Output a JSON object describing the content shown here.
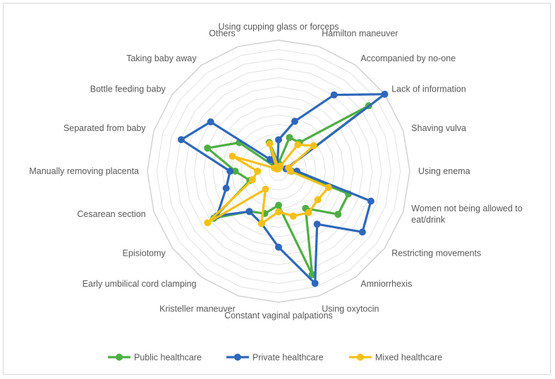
{
  "chart_data": {
    "type": "radar",
    "categories": [
      "Using cupping glass or forceps",
      "Hamilton maneuver",
      "Accompanied by no-one",
      "Lack of information",
      "Shaving vulva",
      "Using enema",
      "Women not being allowed to eat/drink",
      "Restricting movements",
      "Amniorrhexis",
      "Using oxytocin",
      "Constant vaginal palpations",
      "Kristeller maneuver",
      "Early umbilical cord clamping",
      "Episiotomy",
      "Cesarean section",
      "Manually removing placenta",
      "Separated from baby",
      "Bottle feeding baby",
      "Taking baby away",
      "Others"
    ],
    "display_labels": [
      [
        "Using cupping glass or forceps"
      ],
      [
        "Hamilton maneuver"
      ],
      [
        "Accompanied by no-one"
      ],
      [
        "Lack of information"
      ],
      [
        "Shaving vulva"
      ],
      [
        "Using enema"
      ],
      [
        "Women not being allowed to",
        "eat/drink"
      ],
      [
        "Restricting movements"
      ],
      [
        "Amniorrhexis"
      ],
      [
        "Using oxytocin"
      ],
      [
        "Constant vaginal palpations"
      ],
      [
        "Kristeller maneuver"
      ],
      [
        "Early umbilical cord clamping"
      ],
      [
        "Episiotomy"
      ],
      [
        "Cesarean section"
      ],
      [
        "Manually removing placenta"
      ],
      [
        "Separated from baby"
      ],
      [
        "Bottle feeding baby"
      ],
      [
        "Taking baby away"
      ],
      [
        "Others"
      ]
    ],
    "scale_max": 100,
    "grid_rings": 14,
    "grid": true,
    "legend_position": "bottom",
    "series": [
      {
        "name": "Public healthcare",
        "color": "#4eae44",
        "values": [
          6,
          27,
          27,
          85,
          6,
          10,
          56,
          56,
          35,
          83,
          26,
          34,
          38,
          61,
          23,
          33,
          57,
          37,
          4,
          23
        ]
      },
      {
        "name": "Private healthcare",
        "color": "#2f68bb",
        "values": [
          24,
          40,
          72,
          100,
          6,
          14,
          74,
          79,
          50,
          90,
          58,
          42,
          38,
          58,
          42,
          37,
          78,
          64,
          11,
          3
        ]
      },
      {
        "name": "Mixed healthcare",
        "color": "#f6c018",
        "values": [
          2,
          4,
          25,
          33,
          8,
          9,
          40,
          37,
          39,
          36,
          31,
          42,
          17,
          67,
          21,
          16,
          37,
          4,
          2,
          22
        ]
      }
    ]
  }
}
